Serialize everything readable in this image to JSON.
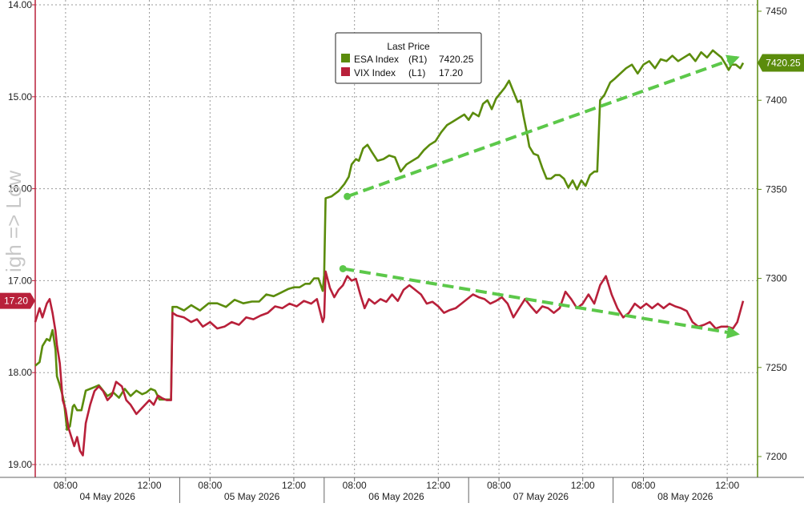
{
  "chart_data": {
    "type": "line",
    "legend": {
      "title": "Last Price",
      "entries": [
        {
          "ticker": "ESA Index",
          "axis": "(R1)",
          "value": "7420.25",
          "color": "#5b8c0c"
        },
        {
          "ticker": "VIX Index",
          "axis": "(L1)",
          "value": "17.20",
          "color": "#b8203a"
        }
      ],
      "placement": "top-center"
    },
    "watermark": "igh => Low",
    "left_axis": {
      "inverted": true,
      "range": [
        14.0,
        19.0
      ],
      "ticks": [
        "14.00",
        "15.00",
        "16.00",
        "17.00",
        "18.00",
        "19.00"
      ],
      "tick_values": [
        14.0,
        15.0,
        16.0,
        17.0,
        18.0,
        19.0
      ],
      "last_value_label": "17.20",
      "color": "#b8203a"
    },
    "right_axis": {
      "range": [
        7188,
        7450
      ],
      "ticks": [
        "7450",
        "7400",
        "7350",
        "7300",
        "7250",
        "7200"
      ],
      "tick_values": [
        7450,
        7400,
        7350,
        7300,
        7250,
        7200
      ],
      "last_value_label": "7420.25",
      "color": "#5b8c0c"
    },
    "x_axis": {
      "time_ticks": [
        {
          "label": "08:00",
          "t": 0.21
        },
        {
          "label": "12:00",
          "t": 0.79
        },
        {
          "label": "08:00",
          "t": 1.21
        },
        {
          "label": "12:00",
          "t": 1.79
        },
        {
          "label": "08:00",
          "t": 2.21
        },
        {
          "label": "12:00",
          "t": 2.79
        },
        {
          "label": "08:00",
          "t": 3.21
        },
        {
          "label": "12:00",
          "t": 3.79
        },
        {
          "label": "08:00",
          "t": 4.21
        },
        {
          "label": "12:00",
          "t": 4.79
        }
      ],
      "day_boundaries": [
        1,
        2,
        3,
        4
      ],
      "days": [
        "04 May 2026",
        "05 May 2026",
        "06 May 2026",
        "07 May 2026",
        "08 May 2026"
      ]
    },
    "series": [
      {
        "name": "ESA Index",
        "axis": "right",
        "color": "#5b8c0c",
        "points": [
          [
            0.0,
            7251
          ],
          [
            0.03,
            7253
          ],
          [
            0.05,
            7262
          ],
          [
            0.08,
            7266
          ],
          [
            0.1,
            7265
          ],
          [
            0.12,
            7271
          ],
          [
            0.14,
            7260
          ],
          [
            0.15,
            7245
          ],
          [
            0.17,
            7240
          ],
          [
            0.19,
            7234
          ],
          [
            0.2,
            7230
          ],
          [
            0.22,
            7215
          ],
          [
            0.24,
            7217
          ],
          [
            0.26,
            7228
          ],
          [
            0.27,
            7229
          ],
          [
            0.29,
            7226
          ],
          [
            0.32,
            7226
          ],
          [
            0.35,
            7237
          ],
          [
            0.38,
            7238
          ],
          [
            0.41,
            7239
          ],
          [
            0.44,
            7240
          ],
          [
            0.47,
            7237
          ],
          [
            0.5,
            7234
          ],
          [
            0.54,
            7236
          ],
          [
            0.58,
            7233
          ],
          [
            0.62,
            7238
          ],
          [
            0.66,
            7234
          ],
          [
            0.7,
            7237
          ],
          [
            0.74,
            7235
          ],
          [
            0.77,
            7236
          ],
          [
            0.8,
            7238
          ],
          [
            0.83,
            7237
          ],
          [
            0.86,
            7232
          ],
          [
            0.88,
            7232
          ],
          [
            0.94,
            7232
          ],
          [
            0.95,
            7284
          ],
          [
            0.98,
            7284
          ],
          [
            1.03,
            7282
          ],
          [
            1.08,
            7285
          ],
          [
            1.14,
            7282
          ],
          [
            1.2,
            7286
          ],
          [
            1.26,
            7286
          ],
          [
            1.32,
            7284
          ],
          [
            1.38,
            7288
          ],
          [
            1.44,
            7286
          ],
          [
            1.5,
            7287
          ],
          [
            1.55,
            7287
          ],
          [
            1.6,
            7291
          ],
          [
            1.65,
            7290
          ],
          [
            1.7,
            7292
          ],
          [
            1.75,
            7294
          ],
          [
            1.79,
            7295
          ],
          [
            1.83,
            7295
          ],
          [
            1.87,
            7297
          ],
          [
            1.9,
            7297
          ],
          [
            1.93,
            7300
          ],
          [
            1.96,
            7300
          ],
          [
            1.99,
            7293
          ],
          [
            2.0,
            7302
          ],
          [
            2.01,
            7345
          ],
          [
            2.05,
            7346
          ],
          [
            2.1,
            7349
          ],
          [
            2.14,
            7353
          ],
          [
            2.17,
            7357
          ],
          [
            2.19,
            7364
          ],
          [
            2.22,
            7367
          ],
          [
            2.24,
            7366
          ],
          [
            2.27,
            7373
          ],
          [
            2.3,
            7375
          ],
          [
            2.33,
            7371
          ],
          [
            2.37,
            7366
          ],
          [
            2.41,
            7367
          ],
          [
            2.45,
            7369
          ],
          [
            2.49,
            7368
          ],
          [
            2.53,
            7360
          ],
          [
            2.57,
            7364
          ],
          [
            2.61,
            7366
          ],
          [
            2.65,
            7368
          ],
          [
            2.69,
            7372
          ],
          [
            2.73,
            7375
          ],
          [
            2.77,
            7377
          ],
          [
            2.81,
            7382
          ],
          [
            2.85,
            7386
          ],
          [
            2.89,
            7388
          ],
          [
            2.93,
            7390
          ],
          [
            2.97,
            7392
          ],
          [
            3.0,
            7389
          ],
          [
            3.03,
            7393
          ],
          [
            3.07,
            7391
          ],
          [
            3.1,
            7398
          ],
          [
            3.13,
            7400
          ],
          [
            3.16,
            7395
          ],
          [
            3.19,
            7401
          ],
          [
            3.22,
            7404
          ],
          [
            3.25,
            7407
          ],
          [
            3.28,
            7411
          ],
          [
            3.31,
            7405
          ],
          [
            3.34,
            7399
          ],
          [
            3.36,
            7400
          ],
          [
            3.38,
            7391
          ],
          [
            3.4,
            7383
          ],
          [
            3.42,
            7374
          ],
          [
            3.45,
            7370
          ],
          [
            3.48,
            7369
          ],
          [
            3.51,
            7362
          ],
          [
            3.54,
            7356
          ],
          [
            3.57,
            7356
          ],
          [
            3.6,
            7358
          ],
          [
            3.63,
            7358
          ],
          [
            3.66,
            7356
          ],
          [
            3.69,
            7351
          ],
          [
            3.72,
            7355
          ],
          [
            3.75,
            7350
          ],
          [
            3.78,
            7355
          ],
          [
            3.81,
            7352
          ],
          [
            3.84,
            7358
          ],
          [
            3.87,
            7360
          ],
          [
            3.89,
            7360
          ],
          [
            3.91,
            7400
          ],
          [
            3.94,
            7403
          ],
          [
            3.98,
            7410
          ],
          [
            4.01,
            7412
          ],
          [
            4.05,
            7415
          ],
          [
            4.09,
            7418
          ],
          [
            4.13,
            7420
          ],
          [
            4.17,
            7415
          ],
          [
            4.21,
            7420
          ],
          [
            4.25,
            7422
          ],
          [
            4.29,
            7418
          ],
          [
            4.33,
            7423
          ],
          [
            4.37,
            7422
          ],
          [
            4.41,
            7425
          ],
          [
            4.45,
            7422
          ],
          [
            4.49,
            7424
          ],
          [
            4.53,
            7426
          ],
          [
            4.57,
            7422
          ],
          [
            4.61,
            7427
          ],
          [
            4.65,
            7424
          ],
          [
            4.69,
            7428
          ],
          [
            4.72,
            7426
          ],
          [
            4.75,
            7424
          ],
          [
            4.78,
            7420
          ],
          [
            4.8,
            7417
          ],
          [
            4.82,
            7420
          ],
          [
            4.85,
            7420
          ],
          [
            4.88,
            7418
          ],
          [
            4.9,
            7421
          ]
        ]
      },
      {
        "name": "VIX Index",
        "axis": "left",
        "color": "#b8203a",
        "points": [
          [
            0.0,
            17.45
          ],
          [
            0.03,
            17.3
          ],
          [
            0.05,
            17.4
          ],
          [
            0.08,
            17.25
          ],
          [
            0.1,
            17.2
          ],
          [
            0.12,
            17.35
          ],
          [
            0.14,
            17.55
          ],
          [
            0.15,
            17.7
          ],
          [
            0.17,
            17.9
          ],
          [
            0.19,
            18.3
          ],
          [
            0.21,
            18.4
          ],
          [
            0.23,
            18.6
          ],
          [
            0.25,
            18.7
          ],
          [
            0.27,
            18.8
          ],
          [
            0.29,
            18.7
          ],
          [
            0.31,
            18.85
          ],
          [
            0.33,
            18.9
          ],
          [
            0.35,
            18.55
          ],
          [
            0.38,
            18.35
          ],
          [
            0.41,
            18.2
          ],
          [
            0.44,
            18.15
          ],
          [
            0.47,
            18.2
          ],
          [
            0.5,
            18.3
          ],
          [
            0.53,
            18.25
          ],
          [
            0.56,
            18.1
          ],
          [
            0.6,
            18.15
          ],
          [
            0.63,
            18.3
          ],
          [
            0.66,
            18.35
          ],
          [
            0.7,
            18.45
          ],
          [
            0.73,
            18.4
          ],
          [
            0.76,
            18.35
          ],
          [
            0.79,
            18.3
          ],
          [
            0.82,
            18.35
          ],
          [
            0.85,
            18.25
          ],
          [
            0.88,
            18.28
          ],
          [
            0.91,
            18.3
          ],
          [
            0.94,
            18.3
          ],
          [
            0.95,
            17.35
          ],
          [
            0.98,
            17.38
          ],
          [
            1.03,
            17.4
          ],
          [
            1.08,
            17.45
          ],
          [
            1.12,
            17.42
          ],
          [
            1.16,
            17.5
          ],
          [
            1.21,
            17.45
          ],
          [
            1.26,
            17.52
          ],
          [
            1.31,
            17.5
          ],
          [
            1.36,
            17.45
          ],
          [
            1.41,
            17.48
          ],
          [
            1.46,
            17.4
          ],
          [
            1.51,
            17.42
          ],
          [
            1.56,
            17.38
          ],
          [
            1.61,
            17.35
          ],
          [
            1.66,
            17.28
          ],
          [
            1.71,
            17.3
          ],
          [
            1.76,
            17.25
          ],
          [
            1.81,
            17.28
          ],
          [
            1.86,
            17.22
          ],
          [
            1.91,
            17.25
          ],
          [
            1.95,
            17.2
          ],
          [
            1.99,
            17.45
          ],
          [
            2.0,
            17.4
          ],
          [
            2.01,
            16.9
          ],
          [
            2.04,
            17.08
          ],
          [
            2.07,
            17.18
          ],
          [
            2.1,
            17.1
          ],
          [
            2.13,
            17.05
          ],
          [
            2.16,
            16.95
          ],
          [
            2.19,
            17.0
          ],
          [
            2.22,
            16.98
          ],
          [
            2.25,
            17.15
          ],
          [
            2.28,
            17.3
          ],
          [
            2.31,
            17.2
          ],
          [
            2.35,
            17.25
          ],
          [
            2.39,
            17.2
          ],
          [
            2.43,
            17.23
          ],
          [
            2.47,
            17.15
          ],
          [
            2.51,
            17.22
          ],
          [
            2.55,
            17.1
          ],
          [
            2.59,
            17.05
          ],
          [
            2.63,
            17.1
          ],
          [
            2.67,
            17.15
          ],
          [
            2.71,
            17.25
          ],
          [
            2.75,
            17.23
          ],
          [
            2.79,
            17.28
          ],
          [
            2.83,
            17.35
          ],
          [
            2.87,
            17.32
          ],
          [
            2.91,
            17.3
          ],
          [
            2.95,
            17.25
          ],
          [
            2.99,
            17.2
          ],
          [
            3.03,
            17.15
          ],
          [
            3.07,
            17.18
          ],
          [
            3.11,
            17.2
          ],
          [
            3.15,
            17.25
          ],
          [
            3.19,
            17.22
          ],
          [
            3.23,
            17.18
          ],
          [
            3.27,
            17.25
          ],
          [
            3.31,
            17.4
          ],
          [
            3.35,
            17.3
          ],
          [
            3.39,
            17.2
          ],
          [
            3.43,
            17.28
          ],
          [
            3.47,
            17.35
          ],
          [
            3.51,
            17.28
          ],
          [
            3.55,
            17.3
          ],
          [
            3.59,
            17.35
          ],
          [
            3.63,
            17.3
          ],
          [
            3.67,
            17.12
          ],
          [
            3.71,
            17.2
          ],
          [
            3.75,
            17.3
          ],
          [
            3.79,
            17.25
          ],
          [
            3.83,
            17.15
          ],
          [
            3.87,
            17.25
          ],
          [
            3.91,
            17.05
          ],
          [
            3.95,
            16.95
          ],
          [
            3.99,
            17.15
          ],
          [
            4.03,
            17.3
          ],
          [
            4.07,
            17.4
          ],
          [
            4.11,
            17.35
          ],
          [
            4.15,
            17.25
          ],
          [
            4.19,
            17.3
          ],
          [
            4.23,
            17.25
          ],
          [
            4.27,
            17.3
          ],
          [
            4.31,
            17.25
          ],
          [
            4.35,
            17.3
          ],
          [
            4.39,
            17.25
          ],
          [
            4.43,
            17.28
          ],
          [
            4.47,
            17.3
          ],
          [
            4.51,
            17.33
          ],
          [
            4.55,
            17.45
          ],
          [
            4.59,
            17.5
          ],
          [
            4.63,
            17.48
          ],
          [
            4.67,
            17.45
          ],
          [
            4.71,
            17.52
          ],
          [
            4.75,
            17.5
          ],
          [
            4.79,
            17.5
          ],
          [
            4.83,
            17.52
          ],
          [
            4.86,
            17.45
          ],
          [
            4.9,
            17.22
          ]
        ]
      }
    ],
    "trend_arrows": [
      {
        "axis": "right",
        "from": [
          2.16,
          7346
        ],
        "to": [
          4.86,
          7424
        ],
        "color": "#5cc84a"
      },
      {
        "axis": "left",
        "from": [
          2.13,
          16.87
        ],
        "to": [
          4.86,
          17.58
        ],
        "color": "#5cc84a"
      }
    ]
  }
}
